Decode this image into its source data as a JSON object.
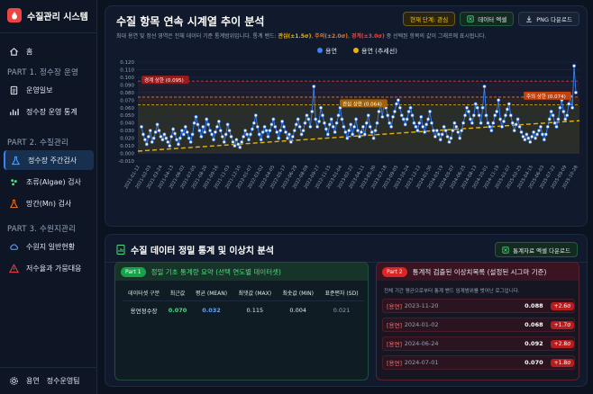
{
  "app": {
    "title": "수질관리 시스템"
  },
  "sidebar": {
    "home": "홈",
    "sections": [
      {
        "label": "PART 1. 정수장 운영",
        "items": [
          "운영일보",
          "정수장 운영 통계"
        ]
      },
      {
        "label": "PART 2. 수질관리",
        "items": [
          "정수장 주간검사",
          "조류(Algae) 검사",
          "망간(Mn) 검사"
        ]
      },
      {
        "label": "PART 3. 수원지관리",
        "items": [
          "수원지 일반현황",
          "저수율과 가뭄대응"
        ]
      }
    ],
    "active_item": "정수장 주간검사",
    "footer": {
      "user": "용연",
      "role": "정수운영팀"
    }
  },
  "chart_panel": {
    "title": "수질 항목 연속 시계열 추이 분석",
    "description_parts": [
      "최대 용연 및 정선 영역은 전체 데이터 기준 통계범위입니다. 통계 밴드: ",
      "관심(±1.5σ)",
      ", ",
      "주의(±2.0σ)",
      ", ",
      "경계(±3.0σ)",
      " 중 선택된 항목의 값이 그래프에 표시됩니다."
    ],
    "buttons": {
      "stage": "현재 단계: 관심",
      "excel": "데이터 엑셀",
      "png": "PNG 다운로드"
    }
  },
  "chart_data": {
    "type": "line",
    "legend": [
      {
        "name": "용연",
        "color": "#3b82f6"
      },
      {
        "name": "용연 (추세선)",
        "color": "#eab308"
      }
    ],
    "y_ticks": [
      "0.120",
      "0.110",
      "0.100",
      "0.090",
      "0.080",
      "0.070",
      "0.060",
      "0.050",
      "0.040",
      "0.030",
      "0.020",
      "0.010",
      "0.000",
      "-0.010"
    ],
    "ylim": [
      -0.01,
      0.12
    ],
    "x_ticks": [
      "2021-01-12",
      "2021-02-03",
      "2021-03-24",
      "2021-04-13",
      "2021-06-02",
      "2021-07-05",
      "2021-08-20",
      "2021-09-16",
      "2021-11-03",
      "2021-12-10",
      "2022-01-07",
      "2022-03-02",
      "2022-04-05",
      "2022-05-17",
      "2022-06-29",
      "2022-08-09",
      "2022-09-27",
      "2022-11-15",
      "2023-01-04",
      "2023-02-22",
      "2023-04-11",
      "2023-05-30",
      "2023-07-18",
      "2023-09-05",
      "2023-10-24",
      "2023-12-12",
      "2024-01-30",
      "2024-03-19",
      "2024-05-07",
      "2024-06-25",
      "2024-08-13",
      "2024-10-01",
      "2024-11-19",
      "2025-01-07",
      "2025-02-25",
      "2025-04-15",
      "2025-06-03",
      "2025-07-22",
      "2025-09-09",
      "2025-10-28"
    ],
    "bands": [
      {
        "name": "경계 상한",
        "value": 0.095,
        "color": "#ef4444",
        "label": "경계 상한 (0.095)"
      },
      {
        "name": "주의 상한",
        "value": 0.074,
        "color": "#f97316",
        "label": "주의 상한 (0.074)"
      },
      {
        "name": "관심 상한",
        "value": 0.064,
        "color": "#eab308",
        "label": "관심 상한 (0.064)"
      }
    ],
    "trend": {
      "start": 0.003,
      "end": 0.043
    },
    "series": [
      {
        "name": "용연",
        "values": [
          0.035,
          0.025,
          0.018,
          0.012,
          0.022,
          0.03,
          0.015,
          0.02,
          0.028,
          0.038,
          0.03,
          0.022,
          0.018,
          0.025,
          0.02,
          0.015,
          0.01,
          0.022,
          0.032,
          0.026,
          0.018,
          0.012,
          0.02,
          0.03,
          0.025,
          0.035,
          0.028,
          0.02,
          0.015,
          0.025,
          0.04,
          0.048,
          0.038,
          0.03,
          0.022,
          0.035,
          0.028,
          0.045,
          0.038,
          0.03,
          0.025,
          0.018,
          0.028,
          0.035,
          0.042,
          0.03,
          0.022,
          0.015,
          0.025,
          0.038,
          0.03,
          0.022,
          0.015,
          0.01,
          0.018,
          0.012,
          0.008,
          0.015,
          0.022,
          0.03,
          0.025,
          0.018,
          0.025,
          0.032,
          0.04,
          0.05,
          0.035,
          0.025,
          0.018,
          0.028,
          0.035,
          0.03,
          0.022,
          0.03,
          0.038,
          0.045,
          0.035,
          0.028,
          0.02,
          0.03,
          0.042,
          0.035,
          0.028,
          0.02,
          0.025,
          0.015,
          0.022,
          0.03,
          0.038,
          0.045,
          0.035,
          0.025,
          0.03,
          0.04,
          0.05,
          0.045,
          0.035,
          0.055,
          0.088,
          0.045,
          0.035,
          0.042,
          0.06,
          0.05,
          0.04,
          0.032,
          0.025,
          0.038,
          0.045,
          0.035,
          0.028,
          0.04,
          0.05,
          0.06,
          0.045,
          0.035,
          0.028,
          0.02,
          0.03,
          0.038,
          0.025,
          0.035,
          0.045,
          0.03,
          0.022,
          0.028,
          0.035,
          0.025,
          0.04,
          0.05,
          0.035,
          0.028,
          0.02,
          0.03,
          0.04,
          0.055,
          0.065,
          0.048,
          0.068,
          0.06,
          0.05,
          0.04,
          0.035,
          0.048,
          0.055,
          0.065,
          0.07,
          0.06,
          0.05,
          0.045,
          0.038,
          0.045,
          0.055,
          0.06,
          0.05,
          0.04,
          0.035,
          0.03,
          0.04,
          0.048,
          0.035,
          0.028,
          0.038,
          0.045,
          0.055,
          0.04,
          0.03,
          0.022,
          0.03,
          0.025,
          0.018,
          0.025,
          0.035,
          0.03,
          0.022,
          0.015,
          0.02,
          0.03,
          0.04,
          0.035,
          0.028,
          0.02,
          0.03,
          0.04,
          0.05,
          0.06,
          0.055,
          0.045,
          0.04,
          0.05,
          0.065,
          0.06,
          0.05,
          0.04,
          0.06,
          0.088,
          0.05,
          0.04,
          0.035,
          0.03,
          0.04,
          0.05,
          0.055,
          0.07,
          0.045,
          0.035,
          0.042,
          0.05,
          0.058,
          0.065,
          0.05,
          0.04,
          0.03,
          0.038,
          0.045,
          0.035,
          0.028,
          0.022,
          0.018,
          0.025,
          0.02,
          0.015,
          0.022,
          0.028,
          0.02,
          0.025,
          0.03,
          0.035,
          0.025,
          0.018,
          0.025,
          0.035,
          0.045,
          0.055,
          0.05,
          0.04,
          0.035,
          0.045,
          0.06,
          0.07,
          0.055,
          0.045,
          0.05,
          0.065,
          0.075,
          0.06,
          0.115,
          0.08
        ]
      }
    ]
  },
  "stats_panel": {
    "title": "수질 데이터 정밀 통계 및 이상치 분석",
    "excel_button": "통계자료 엑셀 다운로드",
    "part1": {
      "badge": "Part 1",
      "title": "정밀 기초 통계량 요약 (선택 연도별 데이터셋)",
      "headers": [
        "데이터셋 구분",
        "최근값",
        "평균 (MEAN)",
        "최댓값 (MAX)",
        "최솟값 (MIN)",
        "표준편차 (SD)"
      ],
      "rows": [
        {
          "name": "용연정수장",
          "latest": "0.070",
          "mean": "0.032",
          "max": "0.115",
          "min": "0.004",
          "sd": "0.021"
        }
      ]
    },
    "part2": {
      "badge": "Part 2",
      "title": "통계적 검출된 이상치목록 (설정된 시그마 기준)",
      "description": "전체 기간 평균으로부터 통계 밴드 임계범위를 벗어난 로그입니다.",
      "rows": [
        {
          "tag": "[용연]",
          "date": "2023-11-20",
          "value": "0.088",
          "sigma": "+2.6σ"
        },
        {
          "tag": "[용연]",
          "date": "2024-01-02",
          "value": "0.068",
          "sigma": "+1.7σ"
        },
        {
          "tag": "[용연]",
          "date": "2024-06-24",
          "value": "0.092",
          "sigma": "+2.8σ"
        },
        {
          "tag": "[용연]",
          "date": "2024-07-01",
          "value": "0.070",
          "sigma": "+1.8σ"
        }
      ]
    }
  }
}
